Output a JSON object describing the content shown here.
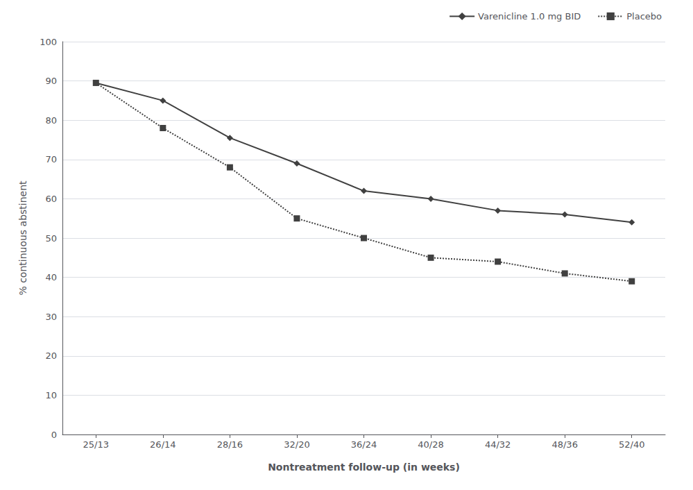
{
  "chart_data": {
    "type": "line",
    "xlabel": "Nontreatment follow-up (in weeks)",
    "ylabel": "% continuous abstinent",
    "categories": [
      "25/13",
      "26/14",
      "28/16",
      "32/20",
      "36/24",
      "40/28",
      "44/32",
      "48/36",
      "52/40"
    ],
    "series": [
      {
        "name": "Varenicline 1.0 mg BID",
        "color": "#404040",
        "line_style": "solid",
        "marker": "diamond",
        "values": [
          89.5,
          85,
          75.5,
          69,
          62,
          60,
          57,
          56,
          54
        ]
      },
      {
        "name": "Placebo",
        "color": "#404040",
        "line_style": "dotted",
        "marker": "square",
        "values": [
          89.5,
          78,
          68,
          55,
          50,
          45,
          44,
          41,
          39
        ]
      }
    ],
    "ylim": [
      0,
      100
    ],
    "yticks": [
      0,
      10,
      20,
      30,
      40,
      50,
      60,
      70,
      80,
      90,
      100
    ],
    "grid": true,
    "legend": "upper right"
  }
}
